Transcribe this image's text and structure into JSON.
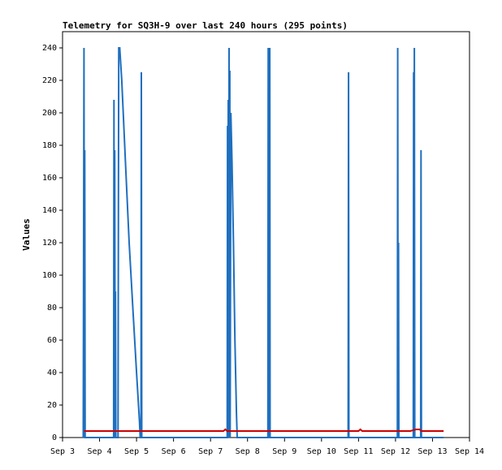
{
  "chart_data": {
    "type": "line",
    "title": "Telemetry for SQ3H-9 over last 240 hours (295 points)",
    "xlabel": "",
    "ylabel": "Values",
    "xlim": [
      3.0,
      14.0
    ],
    "ylim": [
      0,
      250
    ],
    "yticks": [
      0,
      20,
      40,
      60,
      80,
      100,
      120,
      140,
      160,
      180,
      200,
      220,
      240
    ],
    "xticks": [
      {
        "value": 3,
        "label": "Sep 3"
      },
      {
        "value": 4,
        "label": "Sep 4"
      },
      {
        "value": 5,
        "label": "Sep 5"
      },
      {
        "value": 6,
        "label": "Sep 6"
      },
      {
        "value": 7,
        "label": "Sep 7"
      },
      {
        "value": 8,
        "label": "Sep 8"
      },
      {
        "value": 9,
        "label": "Sep 9"
      },
      {
        "value": 10,
        "label": "Sep 10"
      },
      {
        "value": 11,
        "label": "Sep 11"
      },
      {
        "value": 12,
        "label": "Sep 12"
      },
      {
        "value": 13,
        "label": "Sep 13"
      },
      {
        "value": 14,
        "label": "Sep 14"
      }
    ],
    "grid": false,
    "legend": "none",
    "series": [
      {
        "color": "#1f6fbf",
        "points": [
          [
            3.56,
            0
          ],
          [
            3.58,
            240
          ],
          [
            3.59,
            0
          ],
          [
            3.6,
            177
          ],
          [
            3.61,
            0
          ],
          [
            4.38,
            0
          ],
          [
            4.39,
            208
          ],
          [
            4.4,
            0
          ],
          [
            4.41,
            177
          ],
          [
            4.42,
            30
          ],
          [
            4.43,
            90
          ],
          [
            4.44,
            0
          ],
          [
            4.5,
            0
          ],
          [
            4.51,
            150
          ],
          [
            4.52,
            240
          ],
          [
            4.545,
            240
          ],
          [
            4.6,
            220
          ],
          [
            4.7,
            170
          ],
          [
            4.8,
            120
          ],
          [
            4.9,
            80
          ],
          [
            5.0,
            40
          ],
          [
            5.08,
            10
          ],
          [
            5.1,
            0
          ],
          [
            5.12,
            0
          ],
          [
            5.13,
            225
          ],
          [
            5.14,
            0
          ],
          [
            7.45,
            0
          ],
          [
            7.46,
            192
          ],
          [
            7.47,
            0
          ],
          [
            7.48,
            208
          ],
          [
            7.49,
            0
          ],
          [
            7.5,
            240
          ],
          [
            7.51,
            0
          ],
          [
            7.52,
            226
          ],
          [
            7.53,
            0
          ],
          [
            7.55,
            200
          ],
          [
            7.58,
            170
          ],
          [
            7.62,
            120
          ],
          [
            7.66,
            60
          ],
          [
            7.7,
            15
          ],
          [
            7.72,
            0
          ],
          [
            8.55,
            0
          ],
          [
            8.56,
            240
          ],
          [
            8.57,
            0
          ],
          [
            8.58,
            192
          ],
          [
            8.59,
            0
          ],
          [
            8.6,
            240
          ],
          [
            8.61,
            0
          ],
          [
            10.72,
            0
          ],
          [
            10.73,
            225
          ],
          [
            10.74,
            0
          ],
          [
            12.05,
            0
          ],
          [
            12.06,
            240
          ],
          [
            12.07,
            0
          ],
          [
            12.08,
            120
          ],
          [
            12.09,
            0
          ],
          [
            12.48,
            0
          ],
          [
            12.49,
            225
          ],
          [
            12.5,
            0
          ],
          [
            12.51,
            240
          ],
          [
            12.52,
            0
          ],
          [
            12.68,
            0
          ],
          [
            12.69,
            177
          ],
          [
            12.7,
            0
          ],
          [
            13.3,
            0
          ]
        ]
      },
      {
        "color": "#cc0000",
        "points": [
          [
            3.58,
            4
          ],
          [
            7.35,
            4
          ],
          [
            7.4,
            5
          ],
          [
            7.45,
            4
          ],
          [
            11.0,
            4
          ],
          [
            11.05,
            5
          ],
          [
            11.1,
            4
          ],
          [
            12.4,
            4
          ],
          [
            12.55,
            5
          ],
          [
            12.65,
            5
          ],
          [
            12.7,
            4
          ],
          [
            13.3,
            4
          ]
        ]
      }
    ]
  }
}
